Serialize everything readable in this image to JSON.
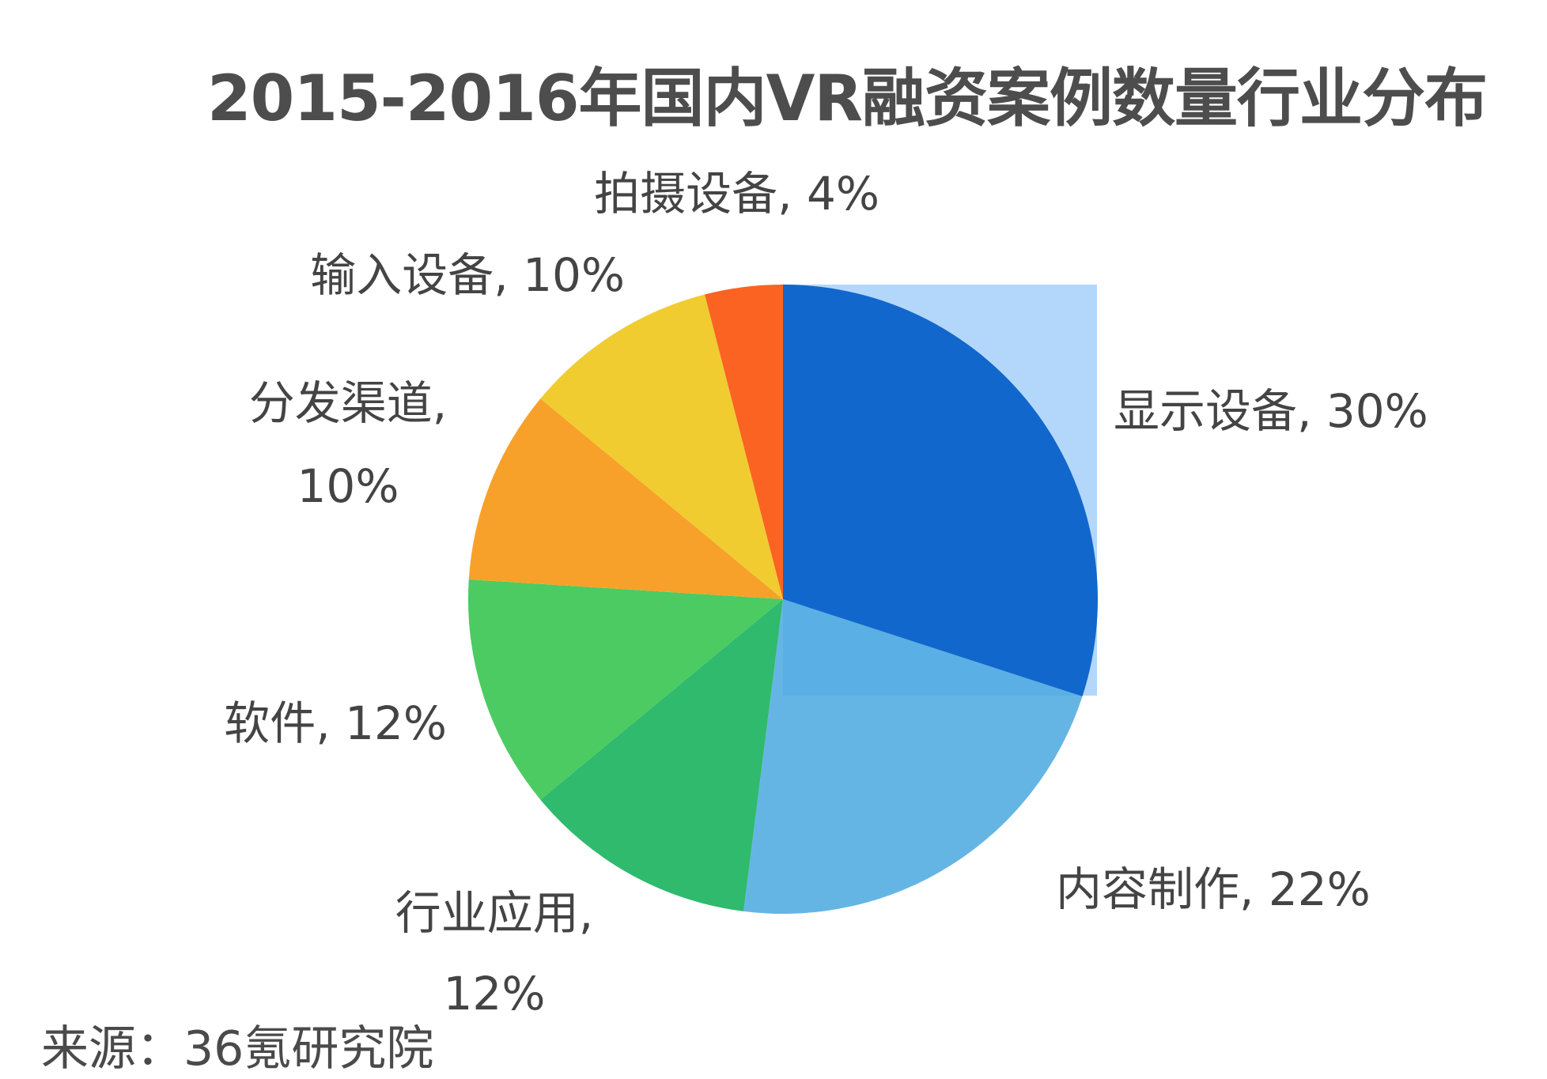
{
  "chart_data": {
    "type": "pie",
    "title": "2015-2016年国内VR融资案例数量行业分布",
    "categories": [
      "显示设备",
      "内容制作",
      "行业应用",
      "软件",
      "分发渠道",
      "输入设备",
      "拍摄设备"
    ],
    "values": [
      30,
      22,
      12,
      12,
      10,
      10,
      4
    ],
    "value_unit": "%",
    "colors": [
      "#1167cc",
      "#4aa8df",
      "#2fba6e",
      "#4bcb62",
      "#f8a12a",
      "#f0cc30",
      "#fb6322"
    ],
    "data_labels": [
      [
        "显示设备, 30%"
      ],
      [
        "内容制作, 22%"
      ],
      [
        "行业应用,",
        "12%"
      ],
      [
        "软件, 12%"
      ],
      [
        "分发渠道,",
        "10%"
      ],
      [
        "输入设备, 10%"
      ],
      [
        "拍摄设备, 4%"
      ]
    ],
    "start_angle": "12 o'clock",
    "direction": "clockwise",
    "legend": "none"
  },
  "source": "来源：36氪研究院"
}
